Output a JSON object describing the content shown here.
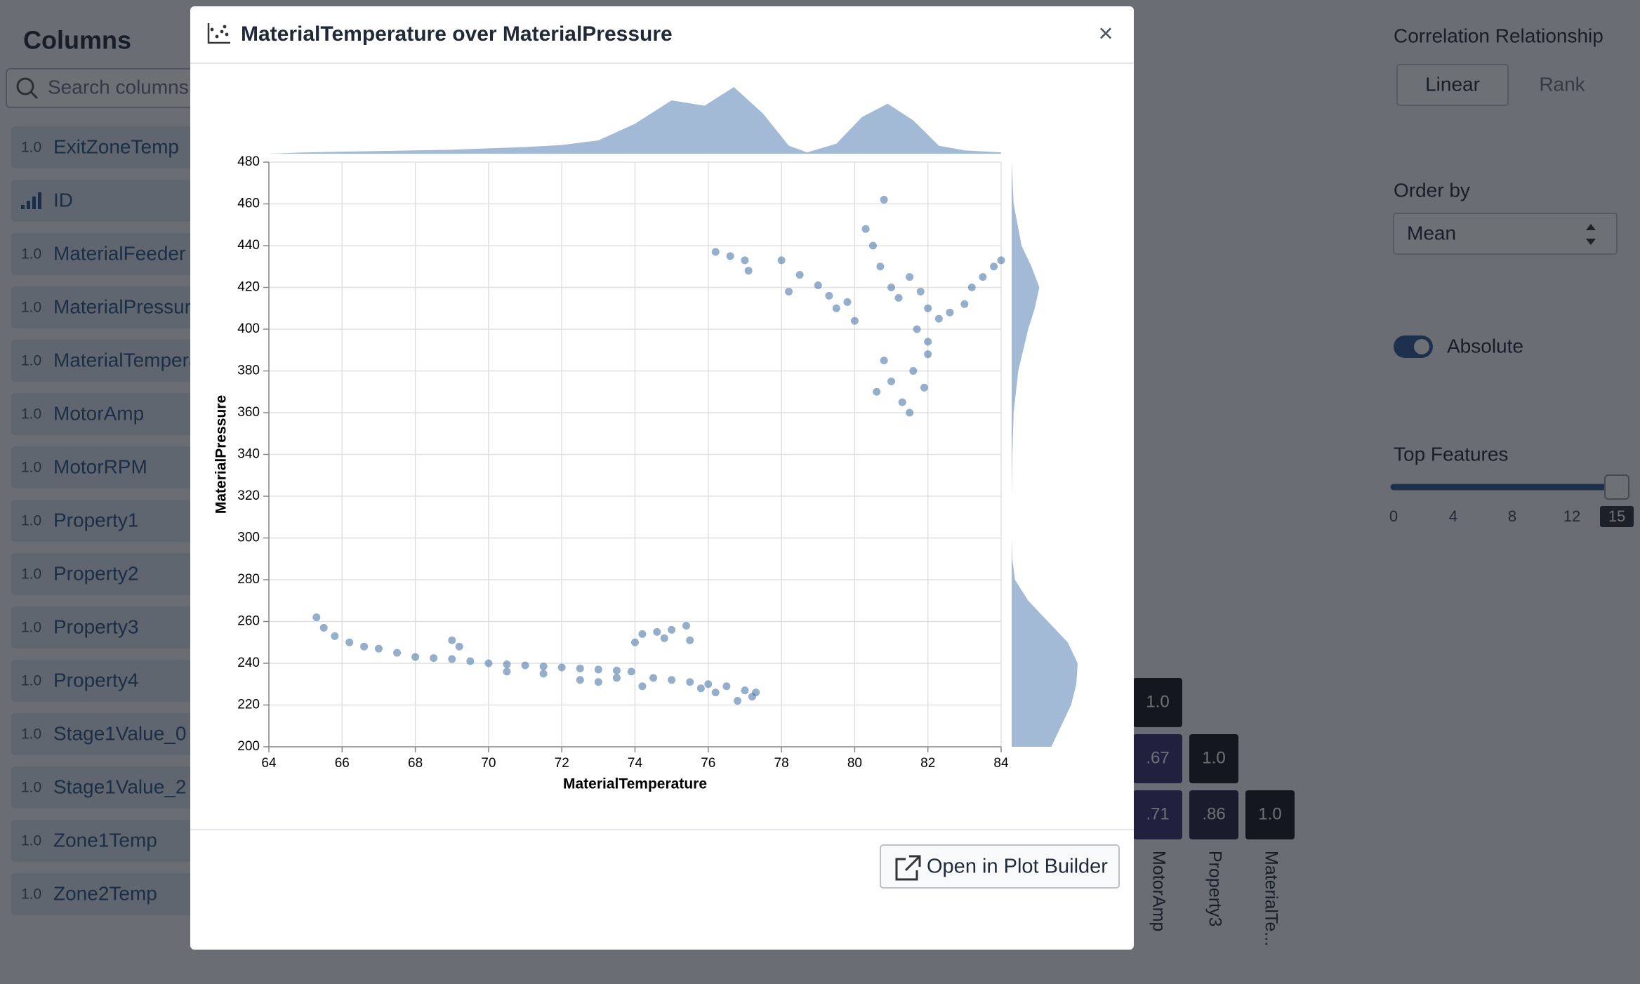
{
  "sidebar": {
    "title": "Columns",
    "search_placeholder": "Search columns",
    "items": [
      {
        "badge": "1.0",
        "name": "ExitZoneTemp"
      },
      {
        "name": "ID"
      },
      {
        "badge": "1.0",
        "name": "MaterialFeeder"
      },
      {
        "badge": "1.0",
        "name": "MaterialPressure"
      },
      {
        "badge": "1.0",
        "name": "MaterialTemperature"
      },
      {
        "badge": "1.0",
        "name": "MotorAmp"
      },
      {
        "badge": "1.0",
        "name": "MotorRPM"
      },
      {
        "badge": "1.0",
        "name": "Property1"
      },
      {
        "badge": "1.0",
        "name": "Property2"
      },
      {
        "badge": "1.0",
        "name": "Property3"
      },
      {
        "badge": "1.0",
        "name": "Property4"
      },
      {
        "badge": "1.0",
        "name": "Stage1Value_0"
      },
      {
        "badge": "1.0",
        "name": "Stage1Value_2"
      },
      {
        "badge": "1.0",
        "name": "Zone1Temp"
      },
      {
        "badge": "1.0",
        "name": "Zone2Temp"
      }
    ]
  },
  "controls": {
    "relationship_label": "Correlation Relationship",
    "relationship_options": [
      "Linear",
      "Rank"
    ],
    "order_label": "Order by",
    "order_value": "Mean",
    "toggle_label": "Absolute",
    "top_features_label": "Top Features",
    "slider_ticks": [
      "0",
      "4",
      "8",
      "12",
      "15"
    ]
  },
  "matrix": {
    "cells": [
      [
        "1.0"
      ],
      [
        ".67",
        "1.0"
      ],
      [
        ".71",
        ".86",
        "1.0"
      ]
    ],
    "labels": [
      "MotorAmp",
      "Property3",
      "MaterialTe..."
    ]
  },
  "modal": {
    "title": "MaterialTemperature over MaterialPressure",
    "close": "×",
    "button": "Open in Plot Builder"
  },
  "chart_data": {
    "type": "scatter",
    "x_label": "MaterialTemperature",
    "y_label": "MaterialPressure",
    "xlim": [
      64,
      84
    ],
    "xticks": [
      64,
      66,
      68,
      70,
      72,
      74,
      76,
      78,
      80,
      82,
      84
    ],
    "ylim": [
      200,
      480
    ],
    "yticks": [
      200,
      220,
      240,
      260,
      280,
      300,
      320,
      340,
      360,
      380,
      400,
      420,
      440,
      460,
      480
    ],
    "grid": true,
    "color": "#4c78a8",
    "x": [
      65.3,
      65.5,
      65.8,
      66.2,
      66.6,
      67,
      67.5,
      68,
      68.5,
      69,
      69.5,
      70,
      70.5,
      71,
      71.5,
      72,
      72.5,
      73,
      73.5,
      73.9,
      74,
      74.2,
      74.6,
      75,
      75.4,
      75.5,
      74.8,
      74.5,
      75,
      75.5,
      76,
      76.5,
      77,
      77.2,
      76.8,
      77.3,
      76.2,
      69,
      69.2,
      70.5,
      71.5,
      72.5,
      73,
      73.5,
      74.2,
      75.8,
      76.2,
      76.6,
      77,
      77.1,
      78,
      78.5,
      79,
      79.3,
      79.8,
      80,
      80.3,
      80.5,
      80.7,
      80.8,
      81,
      81.2,
      81.5,
      81.8,
      82,
      82.3,
      82.6,
      83,
      83.2,
      83.5,
      83.8,
      84,
      81,
      80.6,
      81.3,
      81.6,
      81.9,
      82,
      80.8,
      81.5,
      82,
      81.7,
      78.2,
      79.5
    ],
    "values": [
      262,
      257,
      253,
      250,
      248,
      247,
      245,
      243,
      242.5,
      242,
      241,
      240,
      239.5,
      239,
      238.5,
      238,
      237.5,
      237,
      236.5,
      236,
      250,
      254,
      255,
      256,
      258,
      251,
      252,
      233,
      232,
      231,
      230,
      229,
      227,
      224,
      222,
      226,
      226,
      251,
      248,
      236,
      235,
      232,
      231,
      233,
      229,
      228,
      437,
      435,
      433,
      428,
      433,
      426,
      421,
      416,
      413,
      404,
      448,
      440,
      430,
      462,
      420,
      415,
      425,
      418,
      410,
      405,
      408,
      412,
      420,
      425,
      430,
      433,
      375,
      370,
      365,
      380,
      372,
      388,
      385,
      360,
      394,
      400,
      418,
      410
    ],
    "x_density": {
      "x": [
        64,
        65,
        66,
        67,
        68,
        69,
        70,
        71,
        72,
        73,
        74,
        75,
        75.9,
        76.7,
        77.5,
        78.2,
        78.7,
        79.5,
        80.2,
        80.9,
        81.6,
        82.3,
        83,
        84
      ],
      "values": [
        0,
        0.02,
        0.03,
        0.04,
        0.05,
        0.06,
        0.08,
        0.1,
        0.13,
        0.2,
        0.45,
        0.8,
        0.72,
        1,
        0.6,
        0.12,
        0.02,
        0.15,
        0.55,
        0.75,
        0.5,
        0.12,
        0.05,
        0.02
      ]
    },
    "y_density": {
      "y": [
        200,
        210,
        220,
        230,
        240,
        250,
        260,
        270,
        280,
        290,
        300,
        320,
        340,
        360,
        380,
        400,
        410,
        420,
        430,
        440,
        460,
        480
      ],
      "values": [
        0.6,
        0.75,
        0.9,
        0.98,
        1,
        0.85,
        0.55,
        0.25,
        0.05,
        0.01,
        0,
        0,
        0.01,
        0.03,
        0.1,
        0.25,
        0.35,
        0.42,
        0.3,
        0.15,
        0.03,
        0
      ]
    }
  }
}
